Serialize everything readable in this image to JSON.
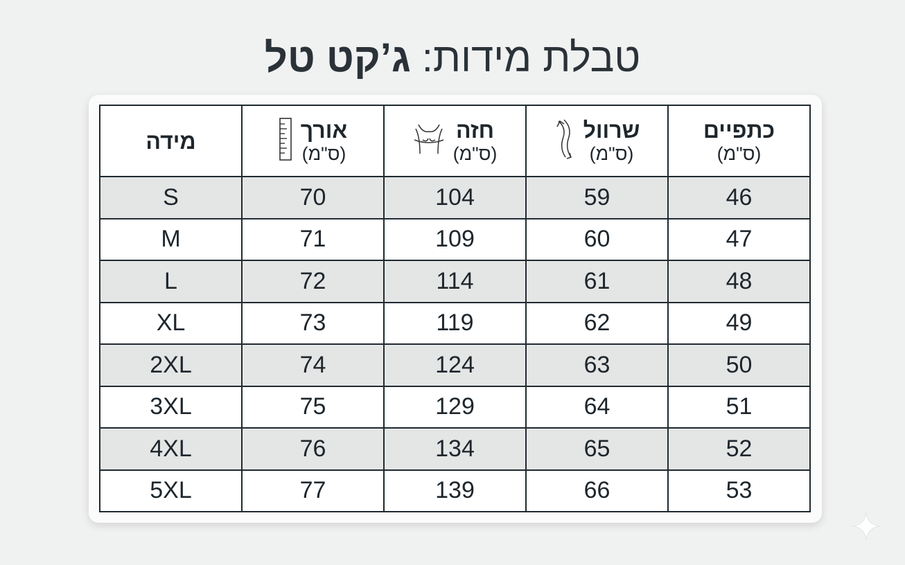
{
  "title": {
    "prefix": "טבלת מידות:",
    "emphasis": "ג’קט טל"
  },
  "table": {
    "columns": [
      {
        "name": "מידה"
      },
      {
        "name": "אורך",
        "unit": "(ס\"מ)"
      },
      {
        "name": "חזה",
        "unit": "(ס\"מ)"
      },
      {
        "name": "שרוול",
        "unit": "(ס\"מ)"
      },
      {
        "name": "כתפיים",
        "unit": "(ס\"מ)"
      }
    ],
    "rows": [
      [
        "S",
        70,
        104,
        59,
        46
      ],
      [
        "M",
        71,
        109,
        60,
        47
      ],
      [
        "L",
        72,
        114,
        61,
        48
      ],
      [
        "XL",
        73,
        119,
        62,
        49
      ],
      [
        "2XL",
        74,
        124,
        63,
        50
      ],
      [
        "3XL",
        75,
        129,
        64,
        51
      ],
      [
        "4XL",
        76,
        134,
        65,
        52
      ],
      [
        "5XL",
        77,
        139,
        66,
        53
      ]
    ]
  }
}
